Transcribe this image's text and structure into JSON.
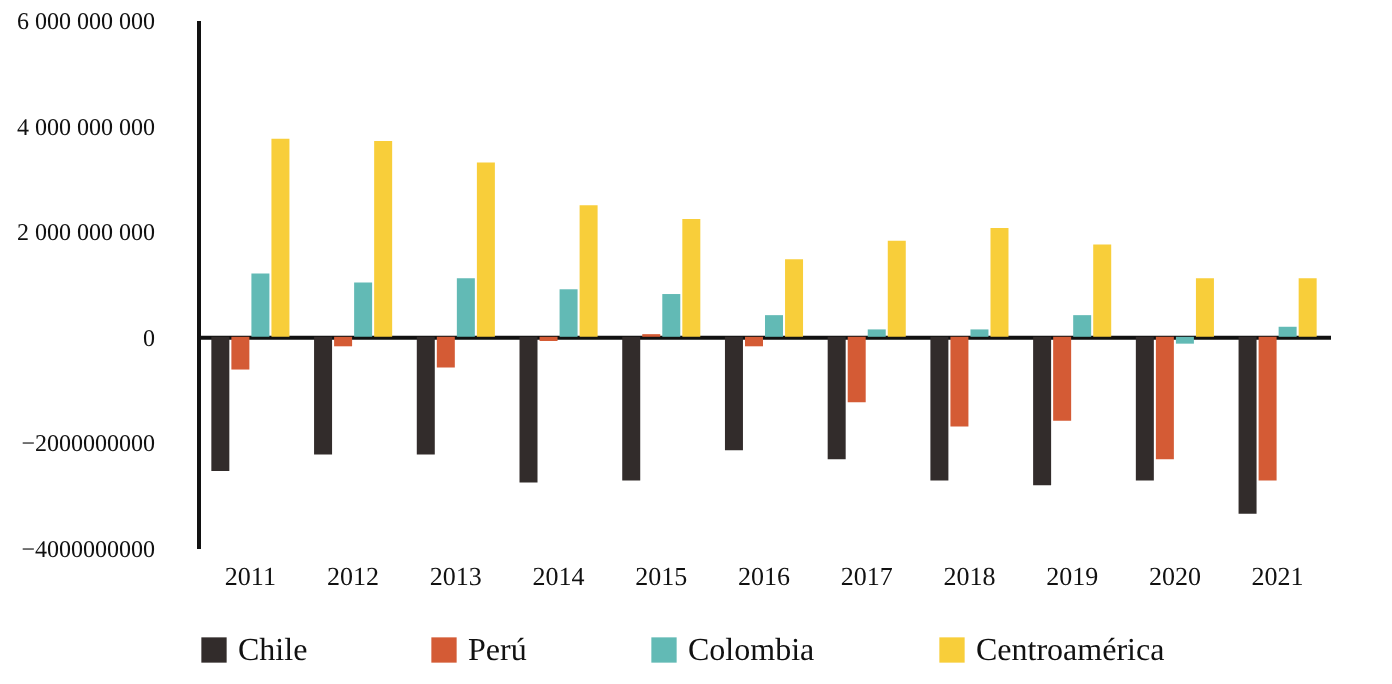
{
  "chart_data": {
    "type": "bar",
    "categories": [
      "2011",
      "2012",
      "2013",
      "2014",
      "2015",
      "2016",
      "2017",
      "2018",
      "2019",
      "2020",
      "2021"
    ],
    "series": [
      {
        "name": "Chile",
        "color": "#322c2b",
        "values": [
          -2540000000,
          -2230000000,
          -2230000000,
          -2760000000,
          -2720000000,
          -2150000000,
          -2320000000,
          -2720000000,
          -2810000000,
          -2720000000,
          -3350000000
        ]
      },
      {
        "name": "Perú",
        "color": "#d45b35",
        "values": [
          -620000000,
          -180000000,
          -580000000,
          -80000000,
          50000000,
          -180000000,
          -1240000000,
          -1700000000,
          -1590000000,
          -2320000000,
          -2720000000
        ]
      },
      {
        "name": "Colombia",
        "color": "#62bab5",
        "values": [
          1200000000,
          1030000000,
          1110000000,
          900000000,
          810000000,
          410000000,
          140000000,
          140000000,
          410000000,
          -130000000,
          190000000
        ]
      },
      {
        "name": "Centroamérica",
        "color": "#f8ce3a",
        "values": [
          3750000000,
          3710000000,
          3300000000,
          2490000000,
          2230000000,
          1470000000,
          1820000000,
          2060000000,
          1750000000,
          1110000000,
          1110000000
        ]
      }
    ],
    "ylim": [
      -4000000000,
      6000000000
    ],
    "yticks": [
      {
        "value": -4000000000,
        "label": "−4000000000"
      },
      {
        "value": -2000000000,
        "label": "−2000000000"
      },
      0,
      {
        "value": 2000000000,
        "label": "2 000 000 000"
      },
      {
        "value": 4000000000,
        "label": "4 000 000 000"
      },
      {
        "value": 6000000000,
        "label": "6 000 000 000"
      }
    ],
    "legend": "bottom"
  }
}
